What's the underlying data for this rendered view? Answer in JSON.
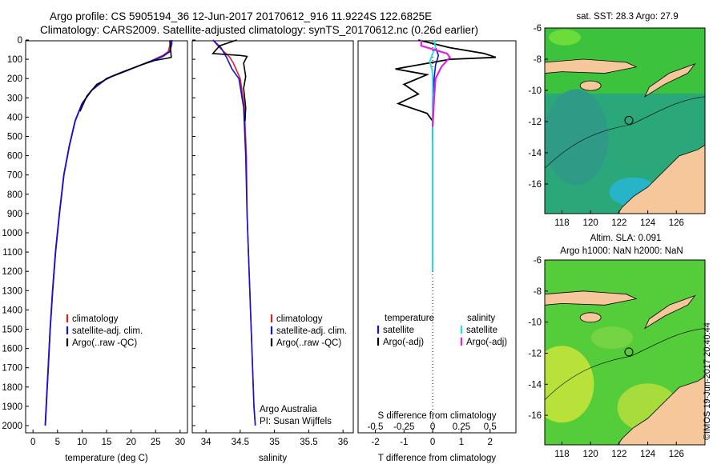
{
  "header": {
    "line1": "Argo profile: CS 5905194_36 12-Jun-2017 20170612_916 11.9224S 122.6825E",
    "line2": "Climatology: CARS2009. Satellite-adjusted climatology: synTS_20170612.nc (0.26d earlier)"
  },
  "footer_stamp": "©IMOS 19-Jun-2017 20:40:44",
  "colors": {
    "climatology": "#e02020",
    "satellite": "#1010e0",
    "argo": "#000000",
    "sat_salinity": "#20e0e0",
    "argo_salinity": "#e020e0",
    "land": "#f5c79a"
  },
  "chart_data": [
    {
      "type": "line",
      "name": "temperature-profile",
      "xlabel": "temperature (deg C)",
      "xlim": [
        -1.5,
        31.5
      ],
      "ylim": [
        2000,
        0
      ],
      "ylim_pad": [
        -100,
        2100
      ],
      "xticks": [
        0,
        5,
        10,
        15,
        20,
        25,
        30
      ],
      "yticks": [
        0,
        100,
        200,
        300,
        400,
        500,
        600,
        700,
        800,
        900,
        1000,
        1100,
        1200,
        1300,
        1400,
        1500,
        1600,
        1700,
        1800,
        1900,
        2000
      ],
      "legend": {
        "entries": [
          "climatology",
          "satellite-adj. clim.",
          "Argo(..raw -QC)"
        ],
        "placement": "bottom-middle"
      },
      "series": [
        {
          "name": "climatology",
          "color": "climatology",
          "points": [
            [
              28,
              0
            ],
            [
              28,
              20
            ],
            [
              27.6,
              60
            ],
            [
              26.5,
              80
            ],
            [
              24,
              110
            ],
            [
              21,
              140
            ],
            [
              18,
              170
            ],
            [
              15,
              200
            ],
            [
              12,
              260
            ],
            [
              10,
              330
            ],
            [
              8.6,
              420
            ],
            [
              7.4,
              550
            ],
            [
              6.3,
              700
            ],
            [
              5.4,
              900
            ],
            [
              4.6,
              1100
            ],
            [
              4,
              1300
            ],
            [
              3.5,
              1500
            ],
            [
              3.1,
              1700
            ],
            [
              2.8,
              1850
            ],
            [
              2.5,
              2000
            ]
          ]
        },
        {
          "name": "satellite-adj. clim.",
          "color": "satellite",
          "points": [
            [
              28.3,
              0
            ],
            [
              28.3,
              20
            ],
            [
              27.9,
              60
            ],
            [
              26.5,
              85
            ],
            [
              24,
              110
            ],
            [
              21,
              140
            ],
            [
              18,
              168
            ],
            [
              15,
              200
            ],
            [
              12,
              260
            ],
            [
              10,
              330
            ],
            [
              8.6,
              420
            ],
            [
              7.4,
              550
            ],
            [
              6.3,
              700
            ],
            [
              5.4,
              900
            ],
            [
              4.6,
              1100
            ],
            [
              4,
              1300
            ],
            [
              3.5,
              1500
            ],
            [
              3.1,
              1700
            ],
            [
              2.8,
              1850
            ],
            [
              2.5,
              2000
            ]
          ]
        },
        {
          "name": "Argo(..raw -QC)",
          "color": "argo",
          "points": [
            [
              27.9,
              5
            ],
            [
              28.2,
              90
            ],
            [
              27.3,
              95
            ],
            [
              25,
              105
            ],
            [
              22,
              130
            ],
            [
              19,
              160
            ],
            [
              16,
              190
            ],
            [
              13,
              230
            ],
            [
              11,
              290
            ],
            [
              9.6,
              370
            ]
          ]
        }
      ]
    },
    {
      "type": "line",
      "name": "salinity-profile",
      "xlabel": "salinity",
      "xlim": [
        33.8,
        36.15
      ],
      "ylim": [
        2000,
        0
      ],
      "xticks": [
        34,
        34.5,
        35,
        35.5,
        36
      ],
      "legend": {
        "entries": [
          "climatology",
          "satellite-adj. clim.",
          "Argo(..raw -QC)"
        ],
        "placement": "bottom-middle"
      },
      "annotation": [
        "Argo Australia",
        "PI: Susan Wijffels"
      ],
      "series": [
        {
          "name": "climatology",
          "color": "climatology",
          "points": [
            [
              34.1,
              0
            ],
            [
              34.2,
              40
            ],
            [
              34.35,
              90
            ],
            [
              34.4,
              120
            ],
            [
              34.5,
              200
            ],
            [
              34.56,
              350
            ],
            [
              34.59,
              600
            ],
            [
              34.6,
              900
            ],
            [
              34.62,
              1100
            ],
            [
              34.65,
              1400
            ],
            [
              34.68,
              1700
            ],
            [
              34.7,
              1900
            ],
            [
              34.72,
              2000
            ]
          ]
        },
        {
          "name": "satellite-adj. clim.",
          "color": "satellite",
          "points": [
            [
              34.1,
              0
            ],
            [
              34.22,
              40
            ],
            [
              34.3,
              90
            ],
            [
              34.38,
              150
            ],
            [
              34.48,
              200
            ],
            [
              34.55,
              350
            ],
            [
              34.58,
              600
            ],
            [
              34.6,
              900
            ],
            [
              34.62,
              1100
            ],
            [
              34.65,
              1400
            ],
            [
              34.68,
              1700
            ],
            [
              34.7,
              1900
            ],
            [
              34.72,
              2000
            ]
          ]
        },
        {
          "name": "Argo(..raw -QC)",
          "color": "argo",
          "points": [
            [
              34.45,
              0
            ],
            [
              34.2,
              30
            ],
            [
              34.1,
              70
            ],
            [
              34.5,
              80
            ],
            [
              34.6,
              85
            ],
            [
              34.55,
              120
            ],
            [
              34.58,
              190
            ],
            [
              34.55,
              250
            ],
            [
              34.58,
              350
            ],
            [
              34.57,
              420
            ]
          ]
        }
      ]
    },
    {
      "type": "line",
      "name": "difference-profile",
      "xlabel": "T difference from climatology",
      "xlabel_top": "S difference from climatology",
      "xlim": [
        -2.6,
        2.9
      ],
      "ylim": [
        2000,
        0
      ],
      "xticks_T": [
        -2,
        -1,
        0,
        1,
        2
      ],
      "xticks_S": [
        -0.5,
        -0.25,
        0,
        0.25,
        0.5
      ],
      "legend_temperature": {
        "title": "temperature",
        "entries": [
          "satellite",
          "Argo(-adj)"
        ]
      },
      "legend_salinity": {
        "title": "salinity",
        "entries": [
          "satellite",
          "Argo(-adj)"
        ]
      },
      "series": [
        {
          "name": "temperature satellite",
          "color": "satellite",
          "points": [
            [
              0.05,
              0
            ],
            [
              0.1,
              40
            ],
            [
              0.2,
              80
            ],
            [
              0.1,
              130
            ],
            [
              0.05,
              200
            ],
            [
              0,
              300
            ],
            [
              0,
              600
            ],
            [
              0,
              1200
            ]
          ]
        },
        {
          "name": "temperature Argo(-adj)",
          "color": "argo",
          "points": [
            [
              -0.5,
              0
            ],
            [
              0.6,
              40
            ],
            [
              1.8,
              70
            ],
            [
              2.2,
              90
            ],
            [
              0.6,
              100
            ],
            [
              -1.3,
              150
            ],
            [
              -0.2,
              180
            ],
            [
              -1,
              230
            ],
            [
              -0.5,
              280
            ],
            [
              -1.2,
              330
            ],
            [
              -0.2,
              380
            ],
            [
              0,
              420
            ],
            [
              0,
              520
            ]
          ]
        },
        {
          "name": "salinity satellite",
          "color": "sat_salinity",
          "points": [
            [
              0.05,
              0
            ],
            [
              0.1,
              40
            ],
            [
              0,
              70
            ],
            [
              -0.1,
              110
            ],
            [
              0,
              170
            ],
            [
              0,
              300
            ],
            [
              0,
              600
            ],
            [
              0,
              1200
            ]
          ]
        },
        {
          "name": "salinity Argo(-adj)",
          "color": "argo_salinity",
          "points": [
            [
              -0.4,
              0
            ],
            [
              -0.4,
              30
            ],
            [
              0.5,
              70
            ],
            [
              0.6,
              90
            ],
            [
              0.3,
              140
            ],
            [
              0.1,
              200
            ],
            [
              0.05,
              300
            ],
            [
              0,
              450
            ]
          ]
        }
      ]
    },
    {
      "type": "heatmap",
      "name": "sst-map",
      "title": "sat. SST: 28.3  Argo: 27.9",
      "xticks": [
        118,
        120,
        122,
        124,
        126
      ],
      "yticks": [
        -6,
        -8,
        -10,
        -12,
        -14,
        -16
      ],
      "xlim": [
        116.8,
        128
      ],
      "ylim": [
        -17.9,
        -6
      ]
    },
    {
      "type": "heatmap",
      "name": "sla-map",
      "title": "Altim. SLA: 0.091",
      "subtitle": "Argo h1000: NaN h2000: NaN",
      "xticks": [
        118,
        120,
        122,
        124,
        126
      ],
      "yticks": [
        -6,
        -8,
        -10,
        -12,
        -14,
        -16
      ],
      "xlim": [
        116.8,
        128
      ],
      "ylim": [
        -17.9,
        -6
      ]
    }
  ]
}
